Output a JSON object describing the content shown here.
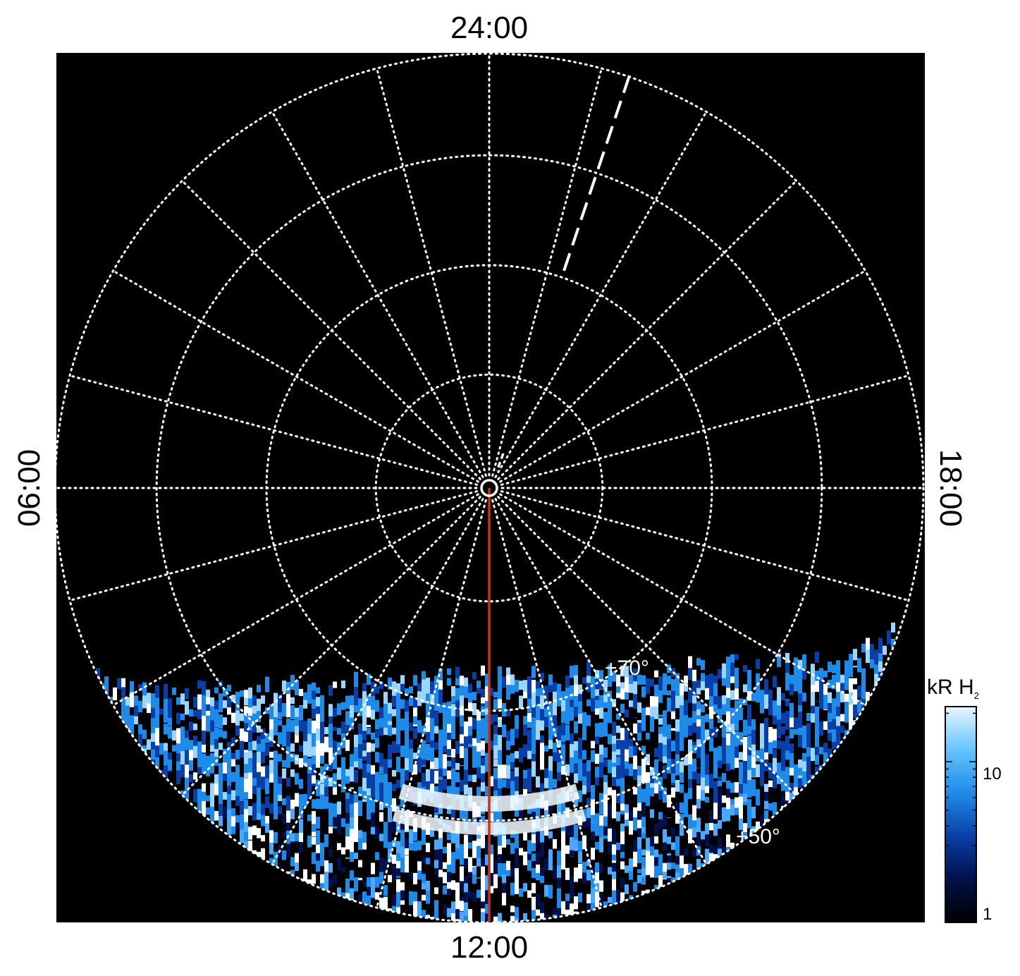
{
  "chart_data": {
    "type": "heatmap",
    "projection": "polar",
    "local_time_labels": {
      "top": "24:00",
      "bottom": "12:00",
      "left": "06:00",
      "right": "18:00"
    },
    "latitude_labels": [
      "+70°",
      "+50°"
    ],
    "grid": true,
    "colorbar": {
      "title": "kR H",
      "title_subscript": "2",
      "scale": "log",
      "ticks": [
        "10",
        "1"
      ],
      "placement": "right",
      "colors": [
        "#000000",
        "#00104a",
        "#0a3fa8",
        "#1f8be8",
        "#64c4ff",
        "#e8f6ff"
      ]
    },
    "colors": {
      "background": "#000000",
      "grid": "#ffffff",
      "meridian_line": "#c83214",
      "dashed_line": "#ffffff"
    }
  }
}
